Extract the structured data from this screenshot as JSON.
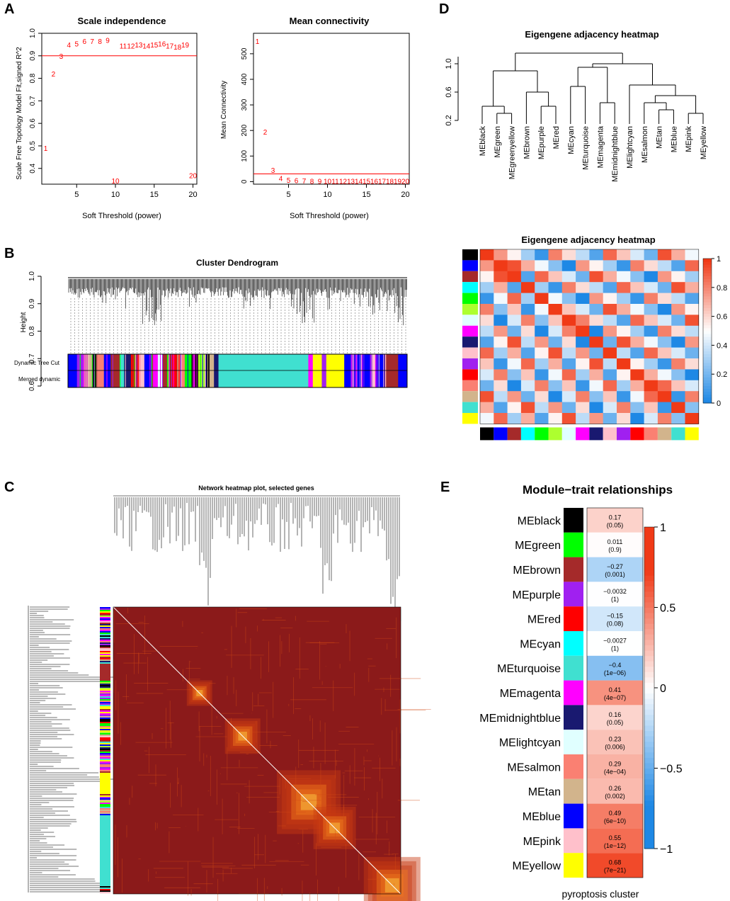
{
  "panels": {
    "a": "A",
    "b": "B",
    "c": "C",
    "d": "D",
    "e": "E"
  },
  "colors": {
    "black": "#000000",
    "green": "#00ff00",
    "greenyellow": "#adff2f",
    "brown": "#a52a2a",
    "purple": "#a020f0",
    "red": "#ff0000",
    "cyan": "#00ffff",
    "turquoise": "#40e0d0",
    "magenta": "#ff00ff",
    "midnightblue": "#191970",
    "lightcyan": "#e0ffff",
    "salmon": "#fa8072",
    "tan": "#d2b48c",
    "blue": "#0000ff",
    "pink": "#ffc0cb",
    "yellow": "#ffff00",
    "hm_dark": "#8b1a1a",
    "threshold_line": "#ff0000"
  },
  "chart_data": [
    {
      "id": "scale-independence",
      "type": "scatter",
      "title": "Scale independence",
      "xlabel": "Soft Threshold (power)",
      "ylabel": "Scale Free Topology Model Fit,signed R^2",
      "xlim": [
        0.5,
        20.5
      ],
      "ylim": [
        0.33,
        1.0
      ],
      "xticks": [
        "5",
        "10",
        "15",
        "20"
      ],
      "yticks": [
        "0.4",
        "0.5",
        "0.6",
        "0.7",
        "0.8",
        "0.9",
        "1.0"
      ],
      "hline": 0.9,
      "points": [
        {
          "x": 1,
          "y": 0.49,
          "label": "1"
        },
        {
          "x": 2,
          "y": 0.82,
          "label": "2"
        },
        {
          "x": 3,
          "y": 0.9,
          "label": "3"
        },
        {
          "x": 4,
          "y": 0.95,
          "label": "4"
        },
        {
          "x": 5,
          "y": 0.955,
          "label": "5"
        },
        {
          "x": 6,
          "y": 0.965,
          "label": "6"
        },
        {
          "x": 7,
          "y": 0.965,
          "label": "7"
        },
        {
          "x": 8,
          "y": 0.965,
          "label": "8"
        },
        {
          "x": 9,
          "y": 0.97,
          "label": "9"
        },
        {
          "x": 10,
          "y": 0.345,
          "label": "10"
        },
        {
          "x": 11,
          "y": 0.945,
          "label": "11"
        },
        {
          "x": 12,
          "y": 0.945,
          "label": "12"
        },
        {
          "x": 13,
          "y": 0.95,
          "label": "13"
        },
        {
          "x": 14,
          "y": 0.945,
          "label": "14"
        },
        {
          "x": 15,
          "y": 0.95,
          "label": "15"
        },
        {
          "x": 16,
          "y": 0.955,
          "label": "16"
        },
        {
          "x": 17,
          "y": 0.945,
          "label": "17"
        },
        {
          "x": 18,
          "y": 0.94,
          "label": "18"
        },
        {
          "x": 19,
          "y": 0.95,
          "label": "19"
        },
        {
          "x": 20,
          "y": 0.37,
          "label": "20"
        }
      ]
    },
    {
      "id": "mean-connectivity",
      "type": "scatter",
      "title": "Mean connectivity",
      "xlabel": "Soft Threshold (power)",
      "ylabel": "Mean Connectivity",
      "xlim": [
        0.5,
        20.5
      ],
      "ylim": [
        -10,
        580
      ],
      "xticks": [
        "5",
        "10",
        "15",
        "20"
      ],
      "yticks": [
        "0",
        "100",
        "200",
        "300",
        "400",
        "500"
      ],
      "hline": 30,
      "points": [
        {
          "x": 1,
          "y": 550,
          "label": "1"
        },
        {
          "x": 2,
          "y": 195,
          "label": "2"
        },
        {
          "x": 3,
          "y": 45,
          "label": "3"
        },
        {
          "x": 4,
          "y": 14,
          "label": "4"
        },
        {
          "x": 5,
          "y": 7,
          "label": "5"
        },
        {
          "x": 6,
          "y": 5,
          "label": "6"
        },
        {
          "x": 7,
          "y": 4,
          "label": "7"
        },
        {
          "x": 8,
          "y": 3,
          "label": "8"
        },
        {
          "x": 9,
          "y": 3,
          "label": "9"
        },
        {
          "x": 10,
          "y": 2,
          "label": "10"
        },
        {
          "x": 11,
          "y": 2,
          "label": "11"
        },
        {
          "x": 12,
          "y": 2,
          "label": "12"
        },
        {
          "x": 13,
          "y": 2,
          "label": "13"
        },
        {
          "x": 14,
          "y": 2,
          "label": "14"
        },
        {
          "x": 15,
          "y": 2,
          "label": "15"
        },
        {
          "x": 16,
          "y": 2,
          "label": "16"
        },
        {
          "x": 17,
          "y": 2,
          "label": "17"
        },
        {
          "x": 18,
          "y": 2,
          "label": "18"
        },
        {
          "x": 19,
          "y": 2,
          "label": "19"
        },
        {
          "x": 20,
          "y": 2,
          "label": "20"
        }
      ]
    },
    {
      "id": "cluster-dendrogram",
      "type": "dendrogram",
      "title": "Cluster Dendrogram",
      "ylabel": "Height",
      "ylim": [
        0.6,
        1.0
      ],
      "yticks": [
        "0.6",
        "0.7",
        "0.8",
        "0.9",
        "1.0"
      ],
      "rows": [
        "Dynamic Tree Cut",
        "Merged dynamic"
      ],
      "color_segments": [
        {
          "color": "blue",
          "w": 4
        },
        {
          "color": "purple",
          "w": 3
        },
        {
          "color": "tan",
          "w": 4
        },
        {
          "color": "black",
          "w": 2
        },
        {
          "color": "salmon",
          "w": 3
        },
        {
          "color": "blue",
          "w": 3
        },
        {
          "color": "brown",
          "w": 4
        },
        {
          "color": "turquoise",
          "w": 2
        },
        {
          "color": "midnightblue",
          "w": 3
        },
        {
          "color": "red",
          "w": 4
        },
        {
          "color": "pink",
          "w": 2
        },
        {
          "color": "blue",
          "w": 3
        },
        {
          "color": "magenta",
          "w": 3
        },
        {
          "color": "lightcyan",
          "w": 2
        },
        {
          "color": "brown",
          "w": 4
        },
        {
          "color": "red",
          "w": 4
        },
        {
          "color": "salmon",
          "w": 2
        },
        {
          "color": "green",
          "w": 3
        },
        {
          "color": "black",
          "w": 3
        },
        {
          "color": "greenyellow",
          "w": 3
        },
        {
          "color": "black",
          "w": 2
        },
        {
          "color": "tan",
          "w": 2
        },
        {
          "color": "midnightblue",
          "w": 2
        },
        {
          "color": "turquoise",
          "w": 40
        },
        {
          "color": "magenta",
          "w": 2
        },
        {
          "color": "yellow",
          "w": 4
        },
        {
          "color": "purple",
          "w": 2
        },
        {
          "color": "yellow",
          "w": 8
        },
        {
          "color": "blue",
          "w": 3
        },
        {
          "color": "purple",
          "w": 3
        },
        {
          "color": "blue",
          "w": 6
        },
        {
          "color": "pink",
          "w": 2
        },
        {
          "color": "blue",
          "w": 4
        },
        {
          "color": "brown",
          "w": 6
        },
        {
          "color": "blue",
          "w": 4
        }
      ]
    },
    {
      "id": "eigengene-dendrogram",
      "type": "dendrogram",
      "title": "Eigengene adjacency heatmap",
      "ylim": [
        0.1,
        1.2
      ],
      "yticks": [
        "0.2",
        "0.6",
        "1.0"
      ],
      "leaves": [
        "MEblack",
        "MEgreen",
        "MEgreenyellow",
        "MEbrown",
        "MEpurple",
        "MEred",
        "MEcyan",
        "MEturquoise",
        "MEmagenta",
        "MEmidnightblue",
        "MElightcyan",
        "MEsalmon",
        "MEtan",
        "MEblue",
        "MEpink",
        "MEyellow"
      ]
    },
    {
      "id": "eigengene-adjacency-heatmap",
      "type": "heatmap",
      "title": "Eigengene adjacency heatmap",
      "colorbar_ticks": [
        "0",
        "0.2",
        "0.4",
        "0.6",
        "0.8",
        "1"
      ],
      "row_colors": [
        "black",
        "blue",
        "brown",
        "cyan",
        "green",
        "greenyellow",
        "lightcyan",
        "magenta",
        "midnightblue",
        "pink",
        "purple",
        "red",
        "salmon",
        "tan",
        "turquoise",
        "yellow"
      ]
    },
    {
      "id": "network-heatmap",
      "type": "heatmap",
      "title": "Network heatmap plot, selected genes"
    },
    {
      "id": "module-trait",
      "type": "heatmap",
      "title": "Module−trait relationships",
      "xlabel": "pyroptosis cluster",
      "colorbar_ticks": [
        "1",
        "0.5",
        "0",
        "−0.5",
        "−1"
      ],
      "modules": [
        {
          "name": "MEblack",
          "color": "black",
          "r": 0.17,
          "r_label": "0.17",
          "p_label": "(0.05)"
        },
        {
          "name": "MEgreen",
          "color": "green",
          "r": 0.011,
          "r_label": "0.011",
          "p_label": "(0.9)"
        },
        {
          "name": "MEbrown",
          "color": "brown",
          "r": -0.27,
          "r_label": "−0.27",
          "p_label": "(0.001)"
        },
        {
          "name": "MEpurple",
          "color": "purple",
          "r": -0.0032,
          "r_label": "−0.0032",
          "p_label": "(1)"
        },
        {
          "name": "MEred",
          "color": "red",
          "r": -0.15,
          "r_label": "−0.15",
          "p_label": "(0.08)"
        },
        {
          "name": "MEcyan",
          "color": "cyan",
          "r": -0.0027,
          "r_label": "−0.0027",
          "p_label": "(1)"
        },
        {
          "name": "MEturquoise",
          "color": "turquoise",
          "r": -0.4,
          "r_label": "−0.4",
          "p_label": "(1e−06)"
        },
        {
          "name": "MEmagenta",
          "color": "magenta",
          "r": 0.41,
          "r_label": "0.41",
          "p_label": "(4e−07)"
        },
        {
          "name": "MEmidnightblue",
          "color": "midnightblue",
          "r": 0.16,
          "r_label": "0.16",
          "p_label": "(0.05)"
        },
        {
          "name": "MElightcyan",
          "color": "lightcyan",
          "r": 0.23,
          "r_label": "0.23",
          "p_label": "(0.006)"
        },
        {
          "name": "MEsalmon",
          "color": "salmon",
          "r": 0.29,
          "r_label": "0.29",
          "p_label": "(4e−04)"
        },
        {
          "name": "MEtan",
          "color": "tan",
          "r": 0.26,
          "r_label": "0.26",
          "p_label": "(0.002)"
        },
        {
          "name": "MEblue",
          "color": "blue",
          "r": 0.49,
          "r_label": "0.49",
          "p_label": "(6e−10)"
        },
        {
          "name": "MEpink",
          "color": "pink",
          "r": 0.55,
          "r_label": "0.55",
          "p_label": "(1e−12)"
        },
        {
          "name": "MEyellow",
          "color": "yellow",
          "r": 0.68,
          "r_label": "0.68",
          "p_label": "(7e−21)"
        }
      ]
    }
  ]
}
